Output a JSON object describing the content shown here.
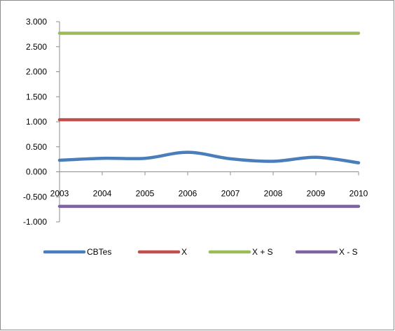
{
  "chart_data": {
    "type": "line",
    "title": "",
    "xlabel": "",
    "ylabel": "",
    "categories": [
      "2003",
      "2004",
      "2005",
      "2006",
      "2007",
      "2008",
      "2009",
      "2010"
    ],
    "ylim": [
      -1.0,
      3.0
    ],
    "y_ticks": [
      3.0,
      2.5,
      2.0,
      1.5,
      1.0,
      0.5,
      0.0,
      -0.5,
      -1.0
    ],
    "y_tick_labels": [
      "3.000",
      "2.500",
      "2.000",
      "1.500",
      "1.000",
      "0.500",
      "0.000",
      "-0.500",
      "-1.000"
    ],
    "grid": false,
    "legend_position": "bottom",
    "smooth_lines": true,
    "series": [
      {
        "name": "CBTes",
        "color": "#4a7ebb",
        "values": [
          0.23,
          0.27,
          0.27,
          0.39,
          0.26,
          0.21,
          0.29,
          0.18
        ]
      },
      {
        "name": "X",
        "color": "#c0504d",
        "values": [
          1.04,
          1.04,
          1.04,
          1.04,
          1.04,
          1.04,
          1.04,
          1.04
        ]
      },
      {
        "name": "X + S",
        "color": "#9bbb59",
        "values": [
          2.77,
          2.77,
          2.77,
          2.77,
          2.77,
          2.77,
          2.77,
          2.77
        ]
      },
      {
        "name": "X - S",
        "color": "#8064a2",
        "values": [
          -0.69,
          -0.69,
          -0.69,
          -0.69,
          -0.69,
          -0.69,
          -0.69,
          -0.69
        ]
      }
    ]
  }
}
